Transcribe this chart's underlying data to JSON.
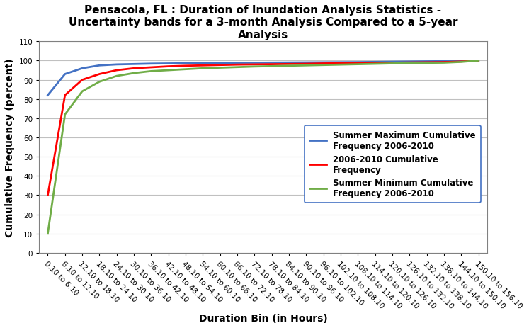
{
  "title": "Pensacola, FL : Duration of Inundation Analysis Statistics -\nUncertainty bands for a 3-month Analysis Compared to a 5-year\nAnalysis",
  "xlabel": "Duration Bin (in Hours)",
  "ylabel": "Cumulative Frequency (percent)",
  "ylim": [
    0,
    110
  ],
  "yticks": [
    0,
    10,
    20,
    30,
    40,
    50,
    60,
    70,
    80,
    90,
    100,
    110
  ],
  "categories": [
    "0.10 to 6.10",
    "6.10 to 12.10",
    "12.10 to 18.10",
    "18.10 to 24.10",
    "24.10 to 30.10",
    "30.10 to 36.10",
    "36.10 to 42.10",
    "42.10 to 48.10",
    "48.10 to 54.10",
    "54.10 to 60.10",
    "60.10 to 66.10",
    "66.10 to 72.10",
    "72.10 to 78.10",
    "78.10 to 84.10",
    "84.10 to 90.10",
    "90.10 to 96.10",
    "96.10 to 102.10",
    "102.10 to 108.10",
    "108.10 to 114.10",
    "114.10 to 120.10",
    "120.10 to 126.10",
    "126.10 to 132.10",
    "132.10 to 138.10",
    "138.10 to 144.10",
    "144.10 to 150.10",
    "150.10 to 156.10"
  ],
  "blue_data": [
    82,
    93,
    96,
    97.5,
    98,
    98.2,
    98.4,
    98.5,
    98.6,
    98.7,
    98.8,
    98.85,
    98.9,
    98.95,
    99.0,
    99.05,
    99.1,
    99.15,
    99.2,
    99.3,
    99.4,
    99.5,
    99.6,
    99.7,
    99.85,
    100.0
  ],
  "red_data": [
    30,
    82,
    90,
    93,
    95,
    96,
    96.5,
    97,
    97.3,
    97.5,
    97.7,
    97.9,
    98.0,
    98.1,
    98.2,
    98.3,
    98.5,
    98.6,
    98.7,
    98.8,
    98.9,
    99.0,
    99.1,
    99.2,
    99.5,
    100.0
  ],
  "green_data": [
    10,
    72,
    84,
    89,
    92,
    93.5,
    94.5,
    95,
    95.5,
    96,
    96.3,
    96.6,
    96.9,
    97.1,
    97.3,
    97.5,
    97.7,
    97.9,
    98.1,
    98.3,
    98.5,
    98.7,
    98.8,
    98.9,
    99.3,
    100.0
  ],
  "blue_color": "#4472C4",
  "red_color": "#FF0000",
  "green_color": "#70AD47",
  "blue_label": "Summer Maximum Cumulative\nFrequency 2006-2010",
  "red_label": "2006-2010 Cumulative\nFrequency",
  "green_label": "Summer Minimum Cumulative\nFrequency 2006-2010",
  "line_width": 2.0,
  "title_fontsize": 11,
  "axis_label_fontsize": 10,
  "tick_fontsize": 7.5,
  "legend_fontsize": 8.5,
  "bg_color": "#FFFFFF",
  "grid_color": "#C0C0C0",
  "tick_rotation": -45,
  "tick_ha": "left"
}
